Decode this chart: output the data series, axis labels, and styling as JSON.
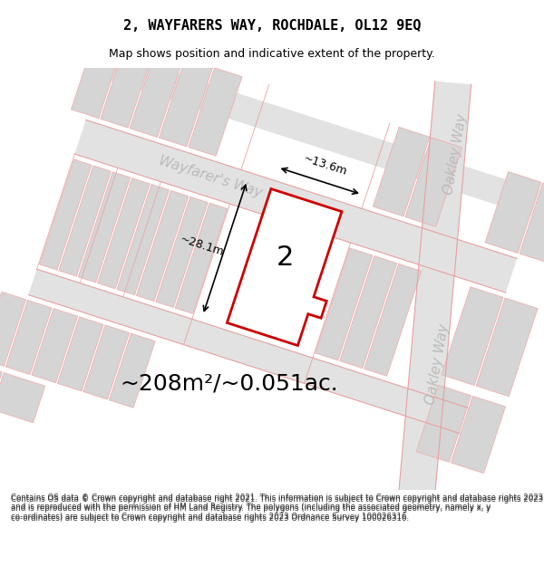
{
  "title": "2, WAYFARERS WAY, ROCHDALE, OL12 9EQ",
  "subtitle": "Map shows position and indicative extent of the property.",
  "area_text": "~208m²/~0.051ac.",
  "dim_height": "~28.1m",
  "dim_width": "~13.6m",
  "plot_number": "2",
  "footer": "Contains OS data © Crown copyright and database right 2021. This information is subject to Crown copyright and database rights 2023 and is reproduced with the permission of HM Land Registry. The polygons (including the associated geometry, namely x, y co-ordinates) are subject to Crown copyright and database rights 2023 Ordnance Survey 100026316.",
  "bg_color": "#f0f0f0",
  "map_bg": "#f0f0f0",
  "road_fill": "#e8e8e8",
  "building_fill": "#d8d8d8",
  "red_outline": "#cc0000",
  "plot_fill": "#ffffff",
  "street_label_color": "#aaaaaa",
  "dim_color": "#000000",
  "title_color": "#000000",
  "footer_color": "#333333"
}
